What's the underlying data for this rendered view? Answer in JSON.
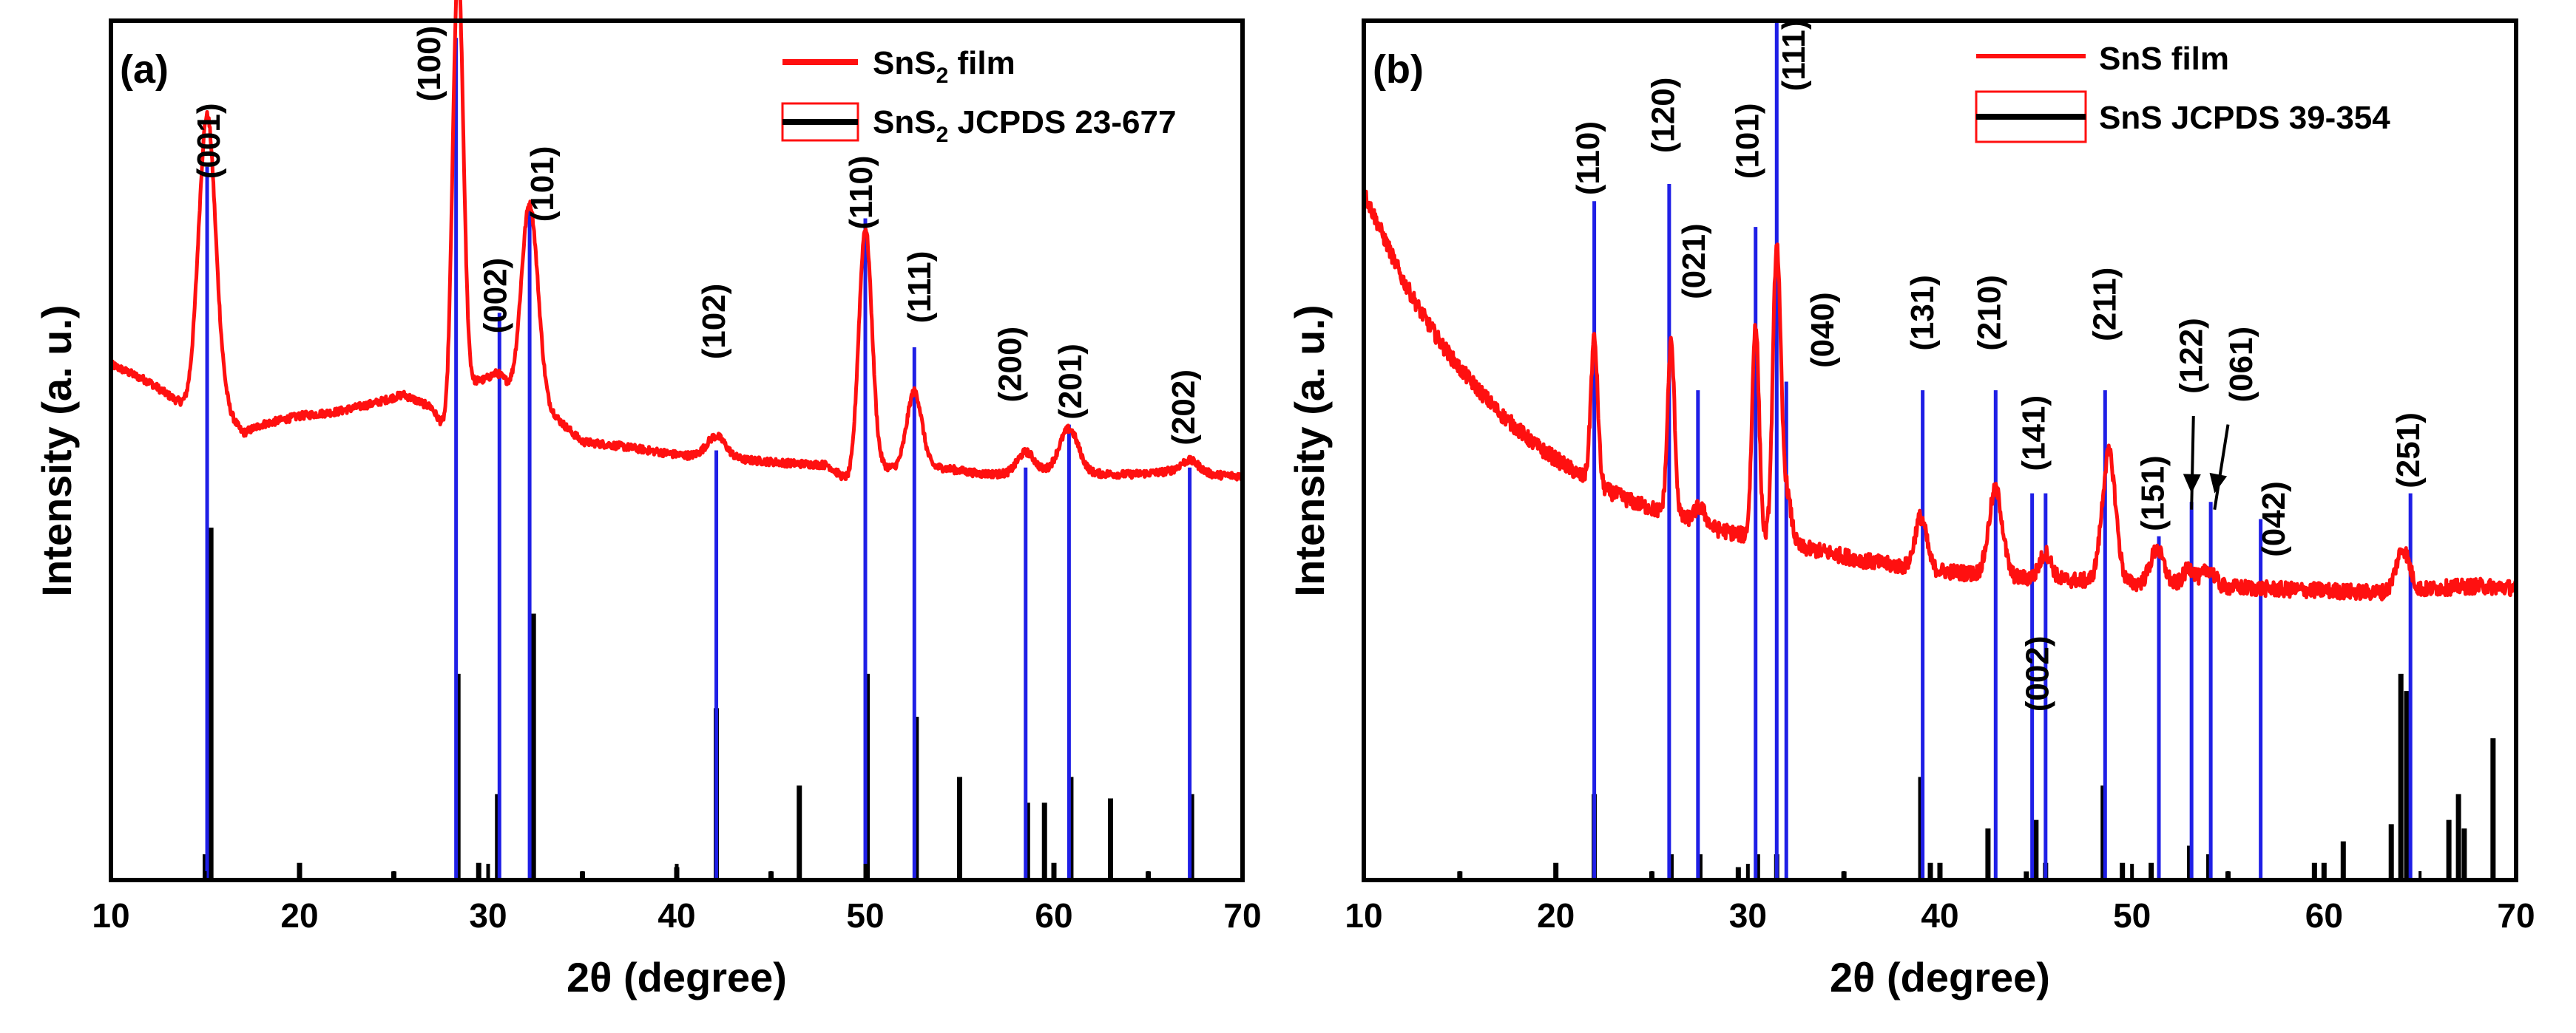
{
  "panels": [
    {
      "id": "a",
      "panel_label": "(a)",
      "xlabel": "2θ (degree)",
      "ylabel": "Intensity (a. u.)",
      "legend_measured": [
        "SnS",
        "2",
        " film"
      ],
      "legend_reference": [
        "SnS",
        "2",
        " JCPDS 23-677"
      ]
    },
    {
      "id": "b",
      "panel_label": "(b)",
      "xlabel": "2θ (degree)",
      "ylabel": "Intensity (a. u.)",
      "legend_measured": [
        "SnS film"
      ],
      "legend_reference": [
        "SnS JCPDS 39-354"
      ]
    }
  ],
  "colors": {
    "film": "#ff1010",
    "reference": "#000000",
    "peak_marker": "#1f1fe6",
    "axis": "#000000"
  },
  "chart_data": [
    {
      "type": "line",
      "panel": "a",
      "title": "",
      "xlabel": "2θ (degree)",
      "ylabel": "Intensity (a. u.)",
      "xlim": [
        10,
        70
      ],
      "ylim": [
        0,
        100
      ],
      "xticks": [
        10,
        20,
        30,
        40,
        50,
        60,
        70
      ],
      "legend_position": "top-right",
      "legend": [
        "SnS2 film",
        "SnS2 JCPDS 23-677"
      ],
      "film_baseline": [
        [
          10,
          60
        ],
        [
          12,
          58
        ],
        [
          14,
          55
        ],
        [
          16,
          55
        ],
        [
          17,
          52
        ],
        [
          18,
          53
        ],
        [
          20,
          54
        ],
        [
          22,
          54.5
        ],
        [
          24,
          55.5
        ],
        [
          25.5,
          56.5
        ],
        [
          27,
          55
        ],
        [
          27.8,
          52
        ],
        [
          28.5,
          57
        ],
        [
          29.5,
          58
        ],
        [
          30.5,
          57
        ],
        [
          31.5,
          55
        ],
        [
          33.5,
          54
        ],
        [
          35,
          51
        ],
        [
          37,
          50.5
        ],
        [
          40,
          49.5
        ],
        [
          43,
          49
        ],
        [
          46,
          48.5
        ],
        [
          48,
          48.3
        ],
        [
          49.3,
          46
        ],
        [
          51,
          48
        ],
        [
          52,
          47.8
        ],
        [
          54,
          48
        ],
        [
          56,
          47.3
        ],
        [
          58,
          47.2
        ],
        [
          60,
          47.6
        ],
        [
          62,
          47.3
        ],
        [
          64,
          47.2
        ],
        [
          66,
          47.5
        ],
        [
          68,
          47.2
        ],
        [
          70,
          47
        ]
      ],
      "film_peaks": [
        {
          "x": 15.1,
          "height": 34,
          "width": 0.45
        },
        {
          "x": 28.4,
          "height": 50,
          "width": 0.28
        },
        {
          "x": 30.6,
          "height": 2,
          "width": 0.5
        },
        {
          "x": 32.2,
          "height": 24,
          "width": 0.45
        },
        {
          "x": 42.1,
          "height": 2.5,
          "width": 0.5
        },
        {
          "x": 50.0,
          "height": 29,
          "width": 0.35
        },
        {
          "x": 52.6,
          "height": 9,
          "width": 0.4
        },
        {
          "x": 58.5,
          "height": 2.5,
          "width": 0.45
        },
        {
          "x": 60.8,
          "height": 5,
          "width": 0.5
        },
        {
          "x": 67.2,
          "height": 1.5,
          "width": 0.5
        }
      ],
      "peak_markers": [
        {
          "x": 15.1,
          "top": 83
        },
        {
          "x": 28.3,
          "top": 98
        },
        {
          "x": 30.6,
          "top": 66
        },
        {
          "x": 32.2,
          "top": 78
        },
        {
          "x": 42.1,
          "top": 50
        },
        {
          "x": 50.0,
          "top": 77
        },
        {
          "x": 52.6,
          "top": 62
        },
        {
          "x": 58.5,
          "top": 48
        },
        {
          "x": 60.8,
          "top": 53
        },
        {
          "x": 67.2,
          "top": 48
        }
      ],
      "reference_lines": [
        {
          "x": 15.0,
          "intensity": 3
        },
        {
          "x": 15.3,
          "intensity": 41
        },
        {
          "x": 20.0,
          "intensity": 2
        },
        {
          "x": 25.0,
          "intensity": 1
        },
        {
          "x": 28.4,
          "intensity": 24
        },
        {
          "x": 29.5,
          "intensity": 2
        },
        {
          "x": 30.5,
          "intensity": 10
        },
        {
          "x": 32.4,
          "intensity": 31
        },
        {
          "x": 35.0,
          "intensity": 1
        },
        {
          "x": 40.0,
          "intensity": 1.5
        },
        {
          "x": 42.1,
          "intensity": 20
        },
        {
          "x": 45.0,
          "intensity": 1
        },
        {
          "x": 46.5,
          "intensity": 11
        },
        {
          "x": 50.1,
          "intensity": 24
        },
        {
          "x": 52.7,
          "intensity": 19
        },
        {
          "x": 55.0,
          "intensity": 12
        },
        {
          "x": 58.6,
          "intensity": 9
        },
        {
          "x": 59.5,
          "intensity": 9
        },
        {
          "x": 60.0,
          "intensity": 2
        },
        {
          "x": 60.9,
          "intensity": 12
        },
        {
          "x": 63.0,
          "intensity": 9.5
        },
        {
          "x": 65.0,
          "intensity": 1
        },
        {
          "x": 67.3,
          "intensity": 10
        }
      ],
      "hkl_labels": [
        {
          "text": "(001)",
          "x": 15.3,
          "y": 86
        },
        {
          "text": "(100)",
          "x": 27.0,
          "y": 95
        },
        {
          "text": "(002)",
          "x": 30.5,
          "y": 68
        },
        {
          "text": "(101)",
          "x": 33.0,
          "y": 81
        },
        {
          "text": "(102)",
          "x": 42.1,
          "y": 65
        },
        {
          "text": "(110)",
          "x": 49.9,
          "y": 80
        },
        {
          "text": "(111)",
          "x": 53.0,
          "y": 69
        },
        {
          "text": "(200)",
          "x": 57.8,
          "y": 60
        },
        {
          "text": "(201)",
          "x": 61.0,
          "y": 58
        },
        {
          "text": "(202)",
          "x": 67.0,
          "y": 55
        }
      ]
    },
    {
      "type": "line",
      "panel": "b",
      "title": "",
      "xlabel": "2θ (degree)",
      "ylabel": "Intensity (a. u.)",
      "xlim": [
        10,
        70
      ],
      "ylim": [
        0,
        100
      ],
      "xticks": [
        10,
        20,
        30,
        40,
        50,
        60,
        70
      ],
      "legend_position": "top-right",
      "legend": [
        "SnS film",
        "SnS JCPDS 39-354"
      ],
      "film_baseline": [
        [
          10,
          80
        ],
        [
          11,
          75
        ],
        [
          12,
          70
        ],
        [
          13,
          66
        ],
        [
          14,
          62.5
        ],
        [
          15,
          59.5
        ],
        [
          16,
          57
        ],
        [
          17,
          54.5
        ],
        [
          18,
          52.5
        ],
        [
          19,
          50.5
        ],
        [
          20,
          49
        ],
        [
          21,
          47.5
        ],
        [
          22,
          46
        ],
        [
          24,
          44
        ],
        [
          26,
          42.5
        ],
        [
          28,
          41
        ],
        [
          30,
          40
        ],
        [
          32,
          39
        ],
        [
          34,
          38.2
        ],
        [
          36,
          37.2
        ],
        [
          38,
          36.5
        ],
        [
          40,
          36
        ],
        [
          42,
          35.6
        ],
        [
          44,
          35.2
        ],
        [
          46,
          35
        ],
        [
          48,
          34.8
        ],
        [
          50,
          34.5
        ],
        [
          52,
          34.4
        ],
        [
          54,
          34.2
        ],
        [
          56,
          34
        ],
        [
          58,
          33.8
        ],
        [
          60,
          33.7
        ],
        [
          62,
          33.5
        ],
        [
          64,
          33.5
        ],
        [
          66,
          34
        ],
        [
          68,
          34.2
        ],
        [
          70,
          34
        ]
      ],
      "film_peaks": [
        {
          "x": 22.0,
          "height": 17,
          "width": 0.18
        },
        {
          "x": 26.0,
          "height": 20,
          "width": 0.18
        },
        {
          "x": 27.5,
          "height": 2,
          "width": 0.3
        },
        {
          "x": 30.4,
          "height": 25,
          "width": 0.18
        },
        {
          "x": 31.5,
          "height": 34,
          "width": 0.2
        },
        {
          "x": 32.0,
          "height": 6,
          "width": 0.25
        },
        {
          "x": 39.0,
          "height": 6,
          "width": 0.3
        },
        {
          "x": 42.9,
          "height": 10,
          "width": 0.35
        },
        {
          "x": 45.5,
          "height": 3,
          "width": 0.3
        },
        {
          "x": 48.8,
          "height": 15,
          "width": 0.35
        },
        {
          "x": 51.3,
          "height": 4,
          "width": 0.35
        },
        {
          "x": 53.0,
          "height": 2,
          "width": 0.3
        },
        {
          "x": 54.0,
          "height": 2,
          "width": 0.3
        },
        {
          "x": 64.1,
          "height": 5,
          "width": 0.35
        }
      ],
      "peak_markers": [
        {
          "x": 22.0,
          "top": 79
        },
        {
          "x": 25.9,
          "top": 81
        },
        {
          "x": 27.4,
          "top": 57
        },
        {
          "x": 30.4,
          "top": 76
        },
        {
          "x": 31.5,
          "top": 103
        },
        {
          "x": 32.0,
          "top": 58
        },
        {
          "x": 39.1,
          "top": 57
        },
        {
          "x": 42.9,
          "top": 57
        },
        {
          "x": 44.8,
          "top": 45
        },
        {
          "x": 45.5,
          "top": 45
        },
        {
          "x": 48.6,
          "top": 57
        },
        {
          "x": 51.4,
          "top": 40
        },
        {
          "x": 53.1,
          "top": 44
        },
        {
          "x": 54.1,
          "top": 44
        },
        {
          "x": 56.7,
          "top": 42
        },
        {
          "x": 64.5,
          "top": 45
        }
      ],
      "reference_lines": [
        {
          "x": 15.0,
          "intensity": 1
        },
        {
          "x": 20.0,
          "intensity": 2
        },
        {
          "x": 22.0,
          "intensity": 10
        },
        {
          "x": 25.0,
          "intensity": 1
        },
        {
          "x": 26.0,
          "intensity": 3
        },
        {
          "x": 27.5,
          "intensity": 3
        },
        {
          "x": 29.5,
          "intensity": 1.5
        },
        {
          "x": 30.5,
          "intensity": 3
        },
        {
          "x": 31.5,
          "intensity": 3
        },
        {
          "x": 35.0,
          "intensity": 1
        },
        {
          "x": 39.0,
          "intensity": 12
        },
        {
          "x": 39.5,
          "intensity": 2
        },
        {
          "x": 40.0,
          "intensity": 2
        },
        {
          "x": 42.5,
          "intensity": 6
        },
        {
          "x": 44.5,
          "intensity": 1
        },
        {
          "x": 45.0,
          "intensity": 7
        },
        {
          "x": 45.5,
          "intensity": 2
        },
        {
          "x": 48.5,
          "intensity": 11
        },
        {
          "x": 49.5,
          "intensity": 2
        },
        {
          "x": 51.0,
          "intensity": 2
        },
        {
          "x": 53.0,
          "intensity": 4
        },
        {
          "x": 54.0,
          "intensity": 3
        },
        {
          "x": 55.0,
          "intensity": 1
        },
        {
          "x": 59.5,
          "intensity": 2
        },
        {
          "x": 60.0,
          "intensity": 2
        },
        {
          "x": 61.0,
          "intensity": 4.5
        },
        {
          "x": 63.5,
          "intensity": 6.5
        },
        {
          "x": 64.0,
          "intensity": 24
        },
        {
          "x": 64.3,
          "intensity": 22
        },
        {
          "x": 66.5,
          "intensity": 7
        },
        {
          "x": 67.0,
          "intensity": 10
        },
        {
          "x": 67.3,
          "intensity": 6
        },
        {
          "x": 68.8,
          "intensity": 16.5
        }
      ],
      "hkl_labels": [
        {
          "text": "(110)",
          "x": 21.8,
          "y": 84
        },
        {
          "text": "(120)",
          "x": 25.7,
          "y": 89
        },
        {
          "text": "(021)",
          "x": 27.3,
          "y": 72
        },
        {
          "text": "(101)",
          "x": 30.1,
          "y": 86
        },
        {
          "text": "(111)",
          "x": 32.5,
          "y": 96
        },
        {
          "text": "(040)",
          "x": 34.0,
          "y": 64
        },
        {
          "text": "(131)",
          "x": 39.2,
          "y": 66
        },
        {
          "text": "(210)",
          "x": 42.7,
          "y": 66
        },
        {
          "text": "(141)",
          "x": 45.0,
          "y": 52
        },
        {
          "text": "(002)",
          "x": 45.2,
          "y": 24
        },
        {
          "text": "(211)",
          "x": 48.7,
          "y": 67
        },
        {
          "text": "(151)",
          "x": 51.2,
          "y": 45
        },
        {
          "text": "(122)",
          "x": 53.2,
          "y": 61
        },
        {
          "text": "(061)",
          "x": 55.8,
          "y": 60
        },
        {
          "text": "(042)",
          "x": 57.5,
          "y": 42
        },
        {
          "text": "(251)",
          "x": 64.5,
          "y": 50
        }
      ],
      "annotations": [
        {
          "type": "arrow",
          "label": "(122)",
          "from": [
            53.2,
            54
          ],
          "to": [
            53.1,
            45
          ]
        },
        {
          "type": "arrow",
          "label": "(061)",
          "from": [
            55.0,
            53
          ],
          "to": [
            54.3,
            45
          ]
        }
      ]
    }
  ]
}
